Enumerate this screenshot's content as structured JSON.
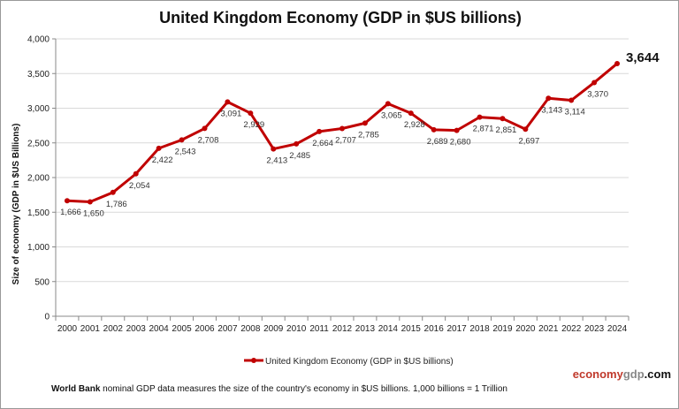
{
  "chart_data": {
    "type": "line",
    "title": "United Kingdom Economy (GDP in $US billions)",
    "ylabel": "Size of economy (GDP in $US Billions)",
    "xlabel": "",
    "categories": [
      "2000",
      "2001",
      "2002",
      "2003",
      "2004",
      "2005",
      "2006",
      "2007",
      "2008",
      "2009",
      "2010",
      "2011",
      "2012",
      "2013",
      "2014",
      "2015",
      "2016",
      "2017",
      "2018",
      "2019",
      "2020",
      "2021",
      "2022",
      "2023",
      "2024"
    ],
    "series": [
      {
        "name": "United Kingdom Economy (GDP in $US billions)",
        "color": "#c00000",
        "values": [
          1666,
          1650,
          1786,
          2054,
          2422,
          2543,
          2708,
          3091,
          2929,
          2413,
          2485,
          2664,
          2707,
          2785,
          3065,
          2928,
          2689,
          2680,
          2871,
          2851,
          2697,
          3143,
          3114,
          3370,
          3644
        ],
        "labels": [
          "1,666",
          "1,650",
          "1,786",
          "2,054",
          "2,422",
          "2,543",
          "2,708",
          "3,091",
          "2,929",
          "2,413",
          "2,485",
          "2,664",
          "2,707",
          "2,785",
          "3,065",
          "2,928",
          "2,689",
          "2,680",
          "2,871",
          "2,851",
          "2,697",
          "3,143",
          "3,114",
          "3,370",
          "3,644"
        ]
      }
    ],
    "ylim": [
      0,
      4000
    ],
    "yticks": [
      "0",
      "500",
      "1,000",
      "1,500",
      "2,000",
      "2,500",
      "3,000",
      "3,500",
      "4,000"
    ],
    "grid": true,
    "legend_placement": "bottom"
  },
  "footer": {
    "brand_part1": "economy",
    "brand_part2": "gdp",
    "brand_part3": ".com",
    "note_bold": "World Bank",
    "note_text": " nominal GDP data  measures the size of the country's economy in $US billions. 1,000 billions = 1 Trillion"
  },
  "colors": {
    "line": "#c00000",
    "brand_red": "#c0392b",
    "brand_gray": "#888888"
  }
}
